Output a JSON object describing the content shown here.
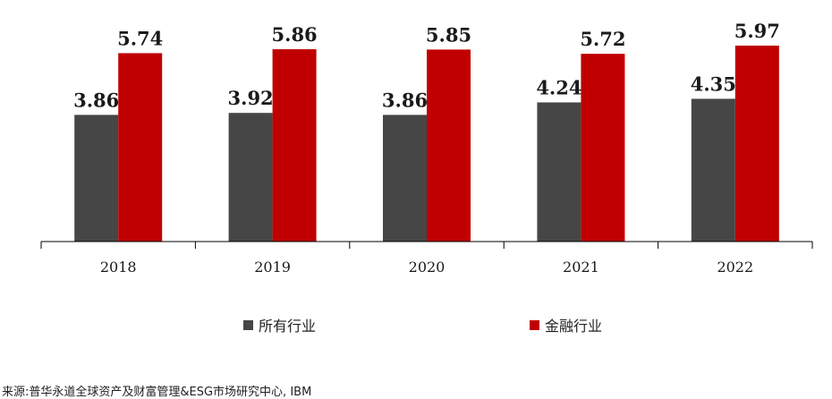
{
  "chart_data": {
    "type": "bar",
    "categories": [
      "2018",
      "2019",
      "2020",
      "2021",
      "2022"
    ],
    "series": [
      {
        "name": "所有行业",
        "color": "#464646",
        "values": [
          3.86,
          3.92,
          3.86,
          4.24,
          4.35
        ]
      },
      {
        "name": "金融行业",
        "color": "#c00000",
        "values": [
          5.74,
          5.86,
          5.85,
          5.72,
          5.97
        ]
      }
    ],
    "value_labels": [
      [
        "3.86",
        "3.92",
        "3.86",
        "4.24",
        "4.35"
      ],
      [
        "5.74",
        "5.86",
        "5.85",
        "5.72",
        "5.97"
      ]
    ],
    "ylim": [
      0,
      6.6
    ],
    "grid": false,
    "legend_position": "bottom"
  },
  "source": "来源:普华永道全球资产及财富管理&ESG市场研究中心, IBM"
}
